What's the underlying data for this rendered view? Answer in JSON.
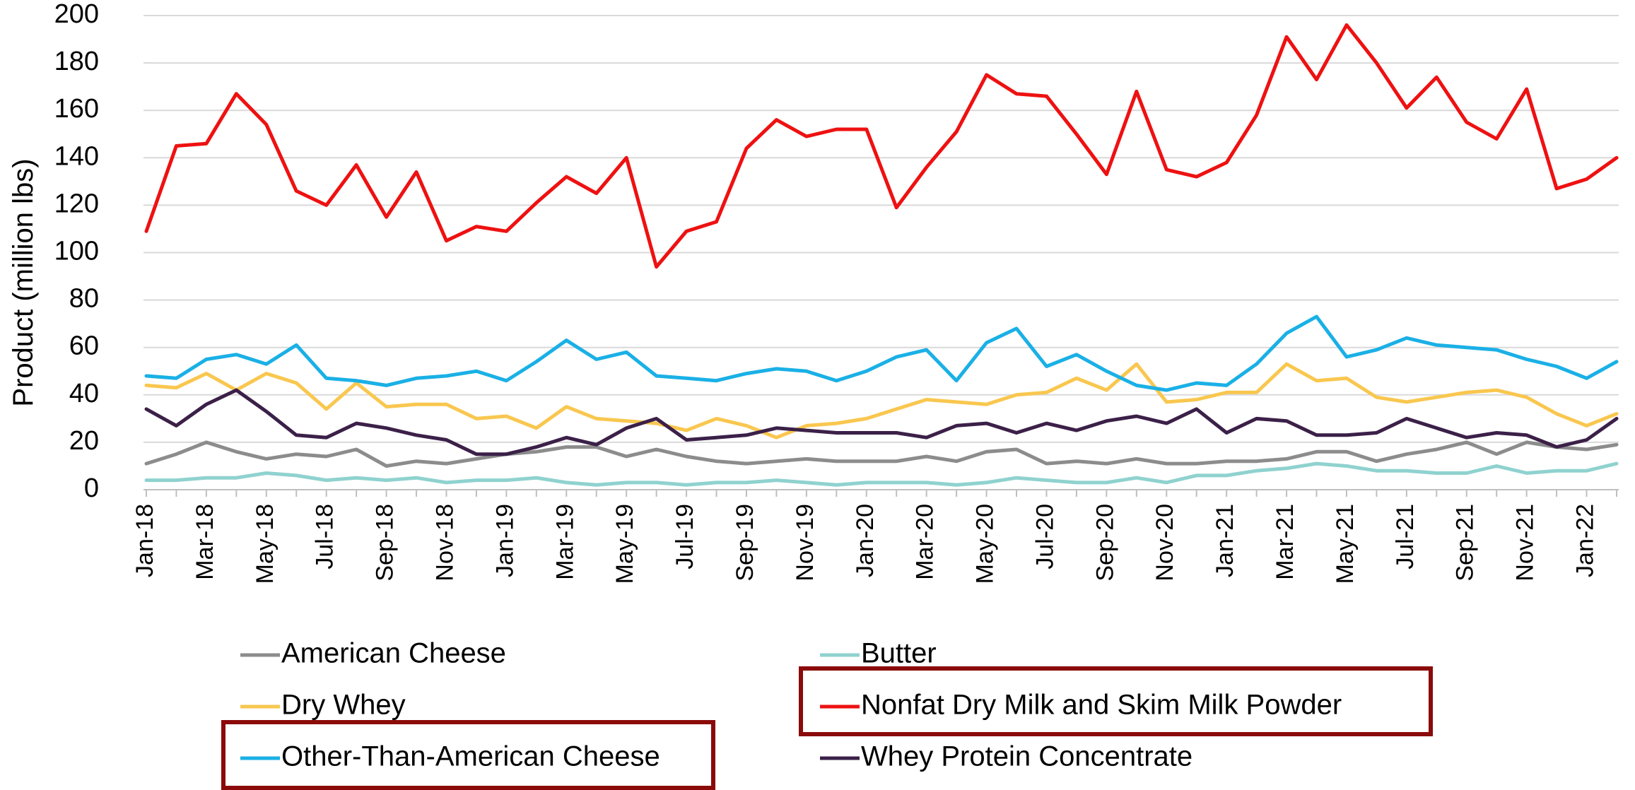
{
  "chart_data": {
    "type": "line",
    "title": "",
    "xlabel": "",
    "ylabel": "Product (million lbs)",
    "ylim": [
      0,
      200
    ],
    "yticks": [
      0,
      20,
      40,
      60,
      80,
      100,
      120,
      140,
      160,
      180,
      200
    ],
    "grid": true,
    "legend_position": "bottom",
    "x": [
      "Jan-18",
      "Feb-18",
      "Mar-18",
      "Apr-18",
      "May-18",
      "Jun-18",
      "Jul-18",
      "Aug-18",
      "Sep-18",
      "Oct-18",
      "Nov-18",
      "Dec-18",
      "Jan-19",
      "Feb-19",
      "Mar-19",
      "Apr-19",
      "May-19",
      "Jun-19",
      "Jul-19",
      "Aug-19",
      "Sep-19",
      "Oct-19",
      "Nov-19",
      "Dec-19",
      "Jan-20",
      "Feb-20",
      "Mar-20",
      "Apr-20",
      "May-20",
      "Jun-20",
      "Jul-20",
      "Aug-20",
      "Sep-20",
      "Oct-20",
      "Nov-20",
      "Dec-20",
      "Jan-21",
      "Feb-21",
      "Mar-21",
      "Apr-21",
      "May-21",
      "Jun-21",
      "Jul-21",
      "Aug-21",
      "Sep-21",
      "Oct-21",
      "Nov-21",
      "Dec-21",
      "Jan-22",
      "Feb-22"
    ],
    "x_tick_labels": [
      "Jan-18",
      "Mar-18",
      "May-18",
      "Jul-18",
      "Sep-18",
      "Nov-18",
      "Jan-19",
      "Mar-19",
      "May-19",
      "Jul-19",
      "Sep-19",
      "Nov-19",
      "Jan-20",
      "Mar-20",
      "May-20",
      "Jul-20",
      "Sep-20",
      "Nov-20",
      "Jan-21",
      "Mar-21",
      "May-21",
      "Jul-21",
      "Sep-21",
      "Nov-21",
      "Jan-22"
    ],
    "series": [
      {
        "name": "American Cheese",
        "color": "#8c8c8c",
        "values": [
          11,
          15,
          20,
          16,
          13,
          15,
          14,
          17,
          10,
          12,
          11,
          13,
          15,
          16,
          18,
          18,
          14,
          17,
          14,
          12,
          11,
          12,
          13,
          12,
          12,
          12,
          14,
          12,
          16,
          17,
          11,
          12,
          11,
          13,
          11,
          11,
          12,
          12,
          13,
          16,
          16,
          12,
          15,
          17,
          20,
          15,
          20,
          18,
          17,
          19
        ]
      },
      {
        "name": "Butter",
        "color": "#8fd2cf",
        "values": [
          4,
          4,
          5,
          5,
          7,
          6,
          4,
          5,
          4,
          5,
          3,
          4,
          4,
          5,
          3,
          2,
          3,
          3,
          2,
          3,
          3,
          4,
          3,
          2,
          3,
          3,
          3,
          2,
          3,
          5,
          4,
          3,
          3,
          5,
          3,
          6,
          6,
          8,
          9,
          11,
          10,
          8,
          8,
          7,
          7,
          10,
          7,
          8,
          8,
          11
        ]
      },
      {
        "name": "Dry Whey",
        "color": "#f9c74f",
        "values": [
          44,
          43,
          49,
          42,
          49,
          45,
          34,
          45,
          35,
          36,
          36,
          30,
          31,
          26,
          35,
          30,
          29,
          28,
          25,
          30,
          27,
          22,
          27,
          28,
          30,
          34,
          38,
          37,
          36,
          40,
          41,
          47,
          42,
          53,
          37,
          38,
          41,
          41,
          53,
          46,
          47,
          39,
          37,
          39,
          41,
          42,
          39,
          32,
          27,
          32
        ]
      },
      {
        "name": "Nonfat Dry Milk and Skim Milk Powder",
        "color": "#ee1111",
        "values": [
          109,
          145,
          146,
          167,
          154,
          126,
          120,
          137,
          115,
          134,
          105,
          111,
          109,
          121,
          132,
          125,
          140,
          94,
          109,
          113,
          144,
          156,
          149,
          152,
          152,
          119,
          136,
          151,
          175,
          167,
          166,
          150,
          133,
          168,
          135,
          132,
          138,
          158,
          191,
          173,
          196,
          180,
          161,
          174,
          155,
          148,
          169,
          127,
          131,
          140
        ]
      },
      {
        "name": "Other-Than-American Cheese",
        "color": "#1ab0e6",
        "values": [
          48,
          47,
          55,
          57,
          53,
          61,
          47,
          46,
          44,
          47,
          48,
          50,
          46,
          54,
          63,
          55,
          58,
          48,
          47,
          46,
          49,
          51,
          50,
          46,
          50,
          56,
          59,
          46,
          62,
          68,
          52,
          57,
          50,
          44,
          42,
          45,
          44,
          53,
          66,
          73,
          56,
          59,
          64,
          61,
          60,
          59,
          55,
          52,
          47,
          54
        ]
      },
      {
        "name": "Whey Protein Concentrate",
        "color": "#3b2048",
        "values": [
          34,
          27,
          36,
          42,
          33,
          23,
          22,
          28,
          26,
          23,
          21,
          15,
          15,
          18,
          22,
          19,
          26,
          30,
          21,
          22,
          23,
          26,
          25,
          24,
          24,
          24,
          22,
          27,
          28,
          24,
          28,
          25,
          29,
          31,
          28,
          34,
          24,
          30,
          29,
          23,
          23,
          24,
          30,
          26,
          22,
          24,
          23,
          18,
          21,
          30
        ]
      }
    ]
  }
}
